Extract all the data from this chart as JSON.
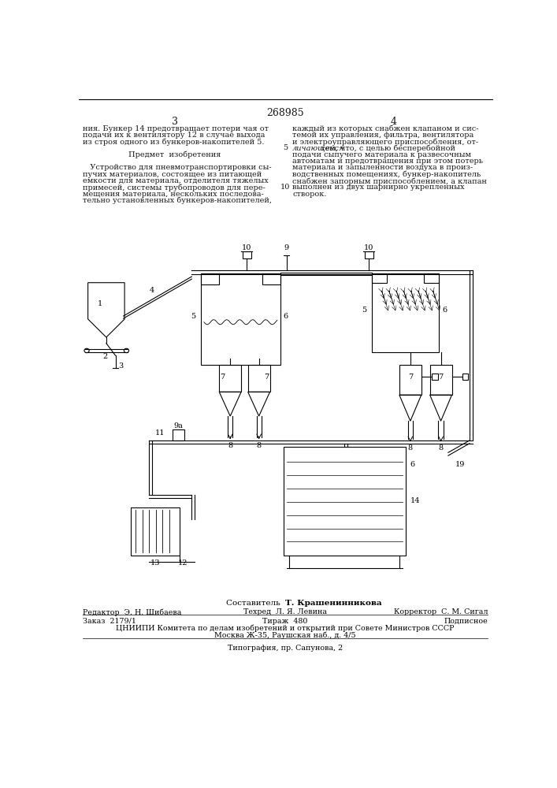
{
  "title_number": "268985",
  "page_col_left": "3",
  "page_col_right": "4",
  "text_lines_left": [
    "ния. Бункер 14 предотвращает потери чая от",
    "подачи их к вентилятору 12 в случае выхода",
    "из строя одного из бункеров-накопителей 5.",
    "",
    "Предмет  изобретения",
    "",
    "   Устройство для пневмотранспортировки сы-",
    "пучих материалов, состоящее из питающей",
    "емкости для материала, отделителя тяжелых",
    "примесей, системы трубопроводов для пере-",
    "мещения материала, нескольких последова-",
    "тельно установленных бункеров-накопителей,"
  ],
  "text_lines_right": [
    "каждый из которых снабжен клапаном и сис-",
    "темой их управления, фильтра, вентилятора",
    "и электроуправляющего приспособления, от-",
    "личающееся тем, что, с целью бесперебойной",
    "подачи сыпучего материала к развесочным",
    "автоматам и предотвращения при этом потерь",
    "материала и запыленности воздуха в произ-",
    "водственных помещениях, бункер-накопитель",
    "снабжен запорным приспособлением, а клапан",
    "выполнен из двух шарнирно укрепленных",
    "створок."
  ],
  "italic_word_right": "личающееся",
  "line_num_5_row": 3,
  "line_num_10_row": 9,
  "footer_composer": "Составитель  Т. Крашенинникова",
  "footer_editor": "Редактор  Э. Н. Шибаева",
  "footer_tech": "Техред  Л. Я. Левина",
  "footer_corrector": "Корректор  С. М. Сигал",
  "footer_order": "Заказ  2179/1",
  "footer_circulation": "Тираж  480",
  "footer_subscr": "Подписное",
  "footer_org": "ЦНИИПИ Комитета по делам изобретений и открытий при Совете Министров СССР",
  "footer_address": "Москва Ж-35, Раушская наб., д. 4/5",
  "footer_print": "Типография, пр. Сапунова, 2",
  "bg_color": "#ffffff",
  "text_color": "#1a1a1a"
}
